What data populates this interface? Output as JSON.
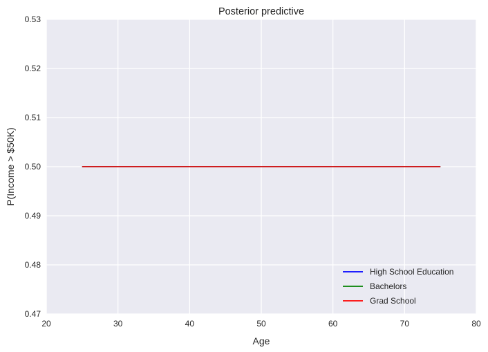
{
  "chart_data": {
    "type": "line",
    "title": "Posterior predictive",
    "xlabel": "Age",
    "ylabel": "P(Income > $50K)",
    "xlim": [
      20,
      80
    ],
    "ylim": [
      0.47,
      0.53
    ],
    "xticks": [
      20,
      30,
      40,
      50,
      60,
      70,
      80
    ],
    "xtick_labels": [
      "20",
      "30",
      "40",
      "50",
      "60",
      "70",
      "80"
    ],
    "yticks": [
      0.47,
      0.48,
      0.49,
      0.5,
      0.51,
      0.52,
      0.53
    ],
    "ytick_labels": [
      "0.47",
      "0.48",
      "0.49",
      "0.50",
      "0.51",
      "0.52",
      "0.53"
    ],
    "grid": true,
    "legend_position": "bottom-right",
    "series": [
      {
        "name": "High School Education",
        "color": "#0000ff",
        "x": [
          25,
          75
        ],
        "y": [
          0.5,
          0.5
        ]
      },
      {
        "name": "Bachelors",
        "color": "#008000",
        "x": [
          25,
          75
        ],
        "y": [
          0.5,
          0.5
        ]
      },
      {
        "name": "Grad School",
        "color": "#ff0000",
        "x": [
          25,
          75
        ],
        "y": [
          0.5,
          0.5
        ]
      }
    ]
  }
}
